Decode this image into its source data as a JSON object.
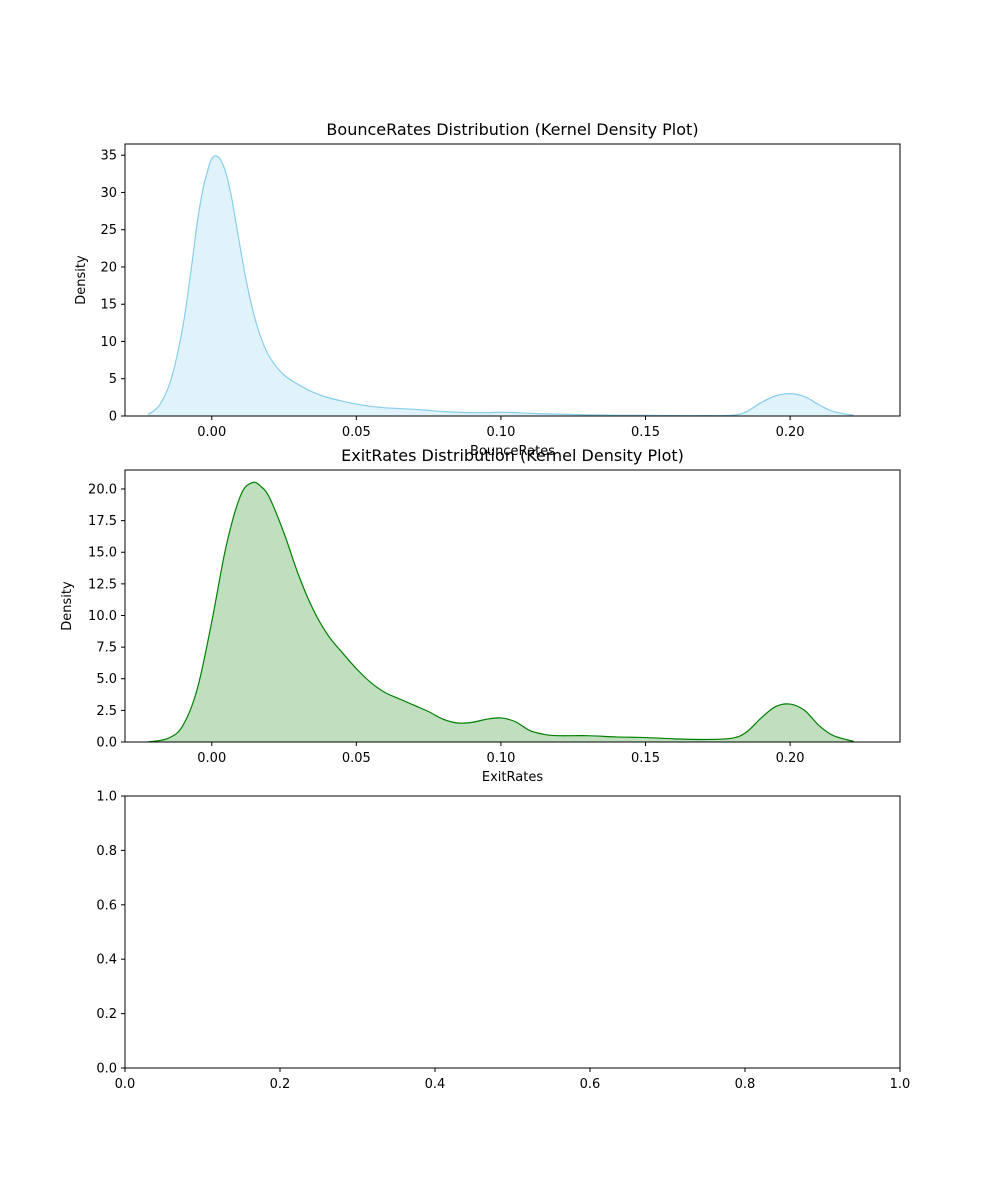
{
  "chart_data": [
    {
      "type": "area",
      "title": "BounceRates Distribution (Kernel Density Plot)",
      "xlabel": "BounceRates",
      "ylabel": "Density",
      "xlim": [
        -0.03,
        0.238
      ],
      "ylim": [
        0,
        36.5
      ],
      "xticks": [
        0.0,
        0.05,
        0.1,
        0.15,
        0.2
      ],
      "xtick_labels": [
        "0.00",
        "0.05",
        "0.10",
        "0.15",
        "0.20"
      ],
      "yticks": [
        0,
        5,
        10,
        15,
        20,
        25,
        30,
        35
      ],
      "ytick_labels": [
        "0",
        "5",
        "10",
        "15",
        "20",
        "25",
        "30",
        "35"
      ],
      "grid": false,
      "color": "#87ceeb",
      "series": [
        {
          "x": [
            -0.022,
            -0.018,
            -0.014,
            -0.01,
            -0.007,
            -0.005,
            -0.003,
            -0.001,
            0.0,
            0.001,
            0.002,
            0.003,
            0.005,
            0.007,
            0.009,
            0.012,
            0.015,
            0.018,
            0.021,
            0.025,
            0.03,
            0.035,
            0.04,
            0.045,
            0.05,
            0.055,
            0.06,
            0.065,
            0.07,
            0.075,
            0.08,
            0.085,
            0.09,
            0.095,
            0.1,
            0.105,
            0.11,
            0.12,
            0.13,
            0.14,
            0.15,
            0.16,
            0.17,
            0.18,
            0.185,
            0.19,
            0.195,
            0.2,
            0.205,
            0.21,
            0.215,
            0.222
          ],
          "y": [
            0.2,
            1.5,
            5.0,
            12.0,
            20.0,
            26.0,
            30.5,
            33.5,
            34.5,
            34.9,
            34.8,
            34.4,
            32.5,
            29.0,
            24.5,
            18.0,
            13.0,
            9.5,
            7.3,
            5.5,
            4.2,
            3.2,
            2.5,
            2.0,
            1.6,
            1.3,
            1.1,
            1.0,
            0.9,
            0.75,
            0.6,
            0.5,
            0.45,
            0.45,
            0.5,
            0.45,
            0.35,
            0.25,
            0.15,
            0.1,
            0.1,
            0.05,
            0.05,
            0.1,
            0.6,
            1.8,
            2.7,
            3.0,
            2.6,
            1.5,
            0.6,
            0.1
          ]
        }
      ]
    },
    {
      "type": "area",
      "title": "ExitRates Distribution (Kernel Density Plot)",
      "xlabel": "ExitRates",
      "ylabel": "Density",
      "xlim": [
        -0.03,
        0.238
      ],
      "ylim": [
        0,
        21.5
      ],
      "xticks": [
        0.0,
        0.05,
        0.1,
        0.15,
        0.2
      ],
      "xtick_labels": [
        "0.00",
        "0.05",
        "0.10",
        "0.15",
        "0.20"
      ],
      "yticks": [
        0,
        2.5,
        5,
        7.5,
        10,
        12.5,
        15,
        17.5,
        20
      ],
      "ytick_labels": [
        "0.0",
        "2.5",
        "5.0",
        "7.5",
        "10.0",
        "12.5",
        "15.0",
        "17.5",
        "20.0"
      ],
      "grid": false,
      "color": "#008000",
      "series": [
        {
          "x": [
            -0.022,
            -0.015,
            -0.01,
            -0.005,
            0.0,
            0.005,
            0.01,
            0.014,
            0.017,
            0.02,
            0.025,
            0.03,
            0.035,
            0.04,
            0.045,
            0.05,
            0.055,
            0.06,
            0.065,
            0.07,
            0.075,
            0.08,
            0.085,
            0.09,
            0.095,
            0.1,
            0.105,
            0.11,
            0.115,
            0.12,
            0.13,
            0.14,
            0.15,
            0.16,
            0.17,
            0.18,
            0.185,
            0.19,
            0.195,
            0.2,
            0.205,
            0.21,
            0.215,
            0.222
          ],
          "y": [
            0.0,
            0.3,
            1.3,
            4.2,
            9.5,
            15.5,
            19.5,
            20.5,
            20.2,
            19.3,
            16.5,
            13.2,
            10.5,
            8.5,
            7.1,
            5.8,
            4.7,
            3.9,
            3.4,
            2.9,
            2.4,
            1.8,
            1.5,
            1.55,
            1.8,
            1.9,
            1.6,
            0.9,
            0.6,
            0.5,
            0.5,
            0.4,
            0.35,
            0.25,
            0.2,
            0.3,
            0.8,
            1.9,
            2.8,
            3.0,
            2.5,
            1.3,
            0.5,
            0.05
          ]
        }
      ]
    },
    {
      "type": "line",
      "title": "",
      "xlabel": "",
      "ylabel": "",
      "xlim": [
        0,
        1
      ],
      "ylim": [
        0,
        1
      ],
      "xticks": [
        0.0,
        0.2,
        0.4,
        0.6,
        0.8,
        1.0
      ],
      "xtick_labels": [
        "0.0",
        "0.2",
        "0.4",
        "0.6",
        "0.8",
        "1.0"
      ],
      "yticks": [
        0.0,
        0.2,
        0.4,
        0.6,
        0.8,
        1.0
      ],
      "ytick_labels": [
        "0.0",
        "0.2",
        "0.4",
        "0.6",
        "0.8",
        "1.0"
      ],
      "grid": false,
      "series": []
    }
  ]
}
